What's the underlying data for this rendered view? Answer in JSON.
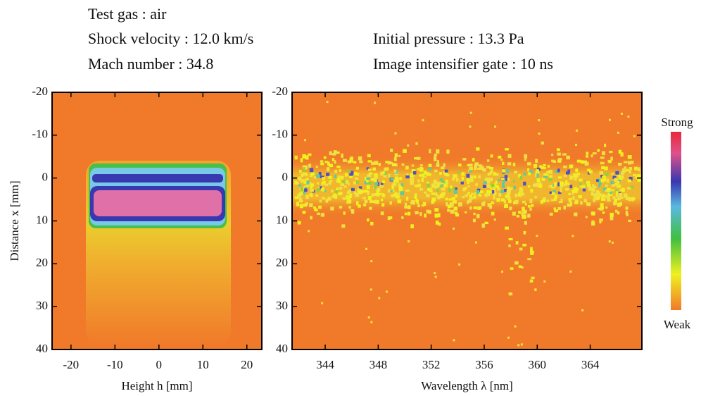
{
  "header": {
    "lines": [
      "Test gas : air",
      "Shock velocity : 12.0 km/s",
      "Mach number : 34.8",
      "Initial pressure : 13.3 Pa",
      "Image intensifier gate : 10 ns"
    ]
  },
  "chart_data": [
    {
      "type": "heatmap",
      "xlabel": "Height h  [mm]",
      "ylabel": "Distance x  [mm]",
      "xlim": [
        -24.3,
        23.4
      ],
      "xticks": [
        -20,
        -10,
        0,
        10,
        20
      ],
      "ylim": [
        40,
        -20
      ],
      "yticks": [
        -20,
        -10,
        0,
        10,
        20,
        30,
        40
      ]
    },
    {
      "type": "heatmap",
      "xlabel": "Wavelength λ  [nm]",
      "xlim": [
        341.5,
        367.9
      ],
      "xticks": [
        344,
        348,
        352,
        356,
        360,
        364
      ],
      "ylim": [
        40,
        -20
      ],
      "yticks": [
        -20,
        -10,
        0,
        10,
        20,
        30,
        40
      ],
      "colorbar": {
        "top_label": "Strong",
        "bottom_label": "Weak"
      }
    }
  ]
}
